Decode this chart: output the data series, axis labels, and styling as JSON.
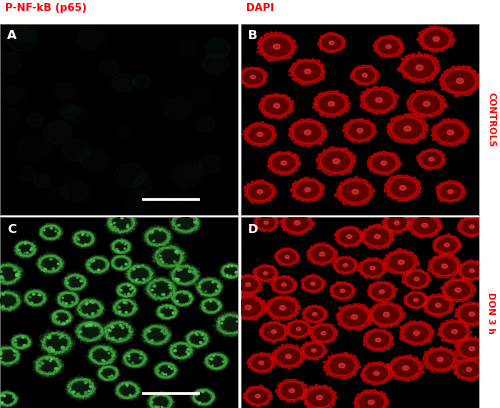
{
  "label_nfkb": "P-NF-kB (p65)",
  "label_dapi": "DAPI",
  "label_controls": "CONTROLS",
  "label_don": "DON 3 h",
  "panel_letters": [
    "A",
    "B",
    "C",
    "D"
  ],
  "label_color": "#FF0000",
  "panel_letter_color": "#FFFFFF",
  "bg_color": "#000000",
  "fig_bg": "#FFFFFF",
  "seed": 42,
  "panel_border_color": "#AAAAAA"
}
